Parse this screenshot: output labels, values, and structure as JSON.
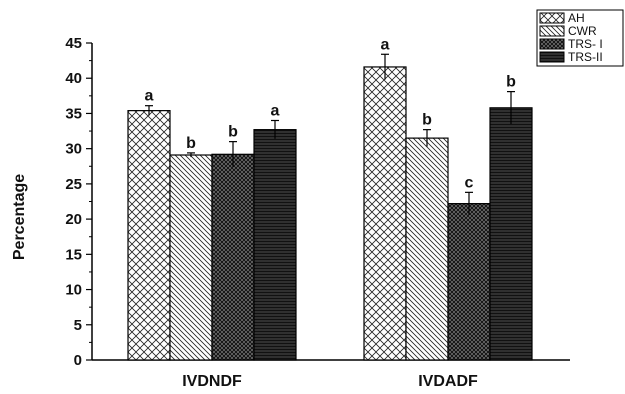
{
  "chart_data": {
    "type": "bar",
    "ylabel": "Percentage",
    "xlabel": "",
    "ylim": [
      0,
      45
    ],
    "yticks": [
      0,
      5,
      10,
      15,
      20,
      25,
      30,
      35,
      40,
      45
    ],
    "categories": [
      "IVDNDF",
      "IVDADF"
    ],
    "series": [
      {
        "name": "AH",
        "values": [
          35.4,
          41.6
        ],
        "errors": [
          0.7,
          1.8
        ],
        "letters": [
          "a",
          "a"
        ],
        "pattern": "crosshatch"
      },
      {
        "name": "CWR",
        "values": [
          29.1,
          31.5
        ],
        "errors": [
          0.3,
          1.2
        ],
        "letters": [
          "b",
          "b"
        ],
        "pattern": "diagonal"
      },
      {
        "name": "TRS- I",
        "values": [
          29.2,
          22.2
        ],
        "errors": [
          1.8,
          1.6
        ],
        "letters": [
          "b",
          "c"
        ],
        "pattern": "dense-crosshatch"
      },
      {
        "name": "TRS-II",
        "values": [
          32.7,
          35.8
        ],
        "errors": [
          1.3,
          2.3
        ],
        "letters": [
          "a",
          "b"
        ],
        "pattern": "horizontal"
      }
    ],
    "legend_position": "top-right"
  }
}
